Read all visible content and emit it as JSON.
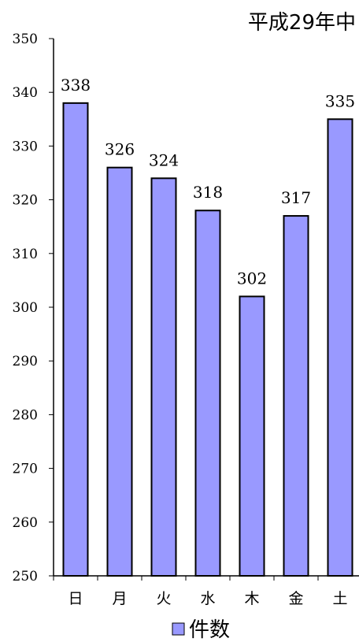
{
  "chart_data": {
    "type": "bar",
    "subtitle": "平成29年中",
    "categories": [
      "日",
      "月",
      "火",
      "水",
      "木",
      "金",
      "土"
    ],
    "series": [
      {
        "name": "件数",
        "values": [
          338,
          326,
          324,
          318,
          302,
          317,
          335
        ],
        "color": "#9999ff"
      }
    ],
    "ylim": [
      250,
      350
    ],
    "yticks": [
      250,
      260,
      270,
      280,
      290,
      300,
      310,
      320,
      330,
      340,
      350
    ],
    "grid": false,
    "legend_position": "bottom-center",
    "data_labels": true,
    "bar_border_color": "#000000",
    "axis_color": "#000000"
  }
}
